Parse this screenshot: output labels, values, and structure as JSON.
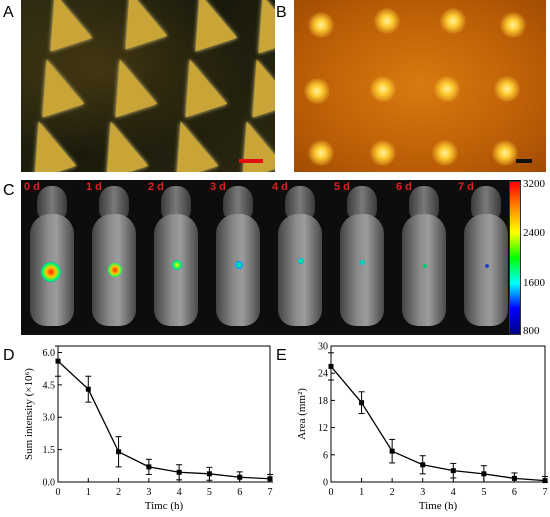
{
  "panels": {
    "a": "A",
    "b": "B",
    "c": "C",
    "d": "D",
    "e": "E"
  },
  "colorbar": {
    "ticks": [
      "3200",
      "2400",
      "1600",
      "800"
    ]
  },
  "days": [
    "0 d",
    "1 d",
    "2 d",
    "3 d",
    "4 d",
    "5 d",
    "6 d",
    "7 d"
  ],
  "chart_data": [
    {
      "type": "line",
      "panel": "D",
      "x": [
        0,
        1,
        2,
        3,
        4,
        5,
        6,
        7
      ],
      "values": [
        5.6,
        4.3,
        1.4,
        0.7,
        0.45,
        0.38,
        0.22,
        0.15
      ],
      "errors": [
        0.7,
        0.6,
        0.7,
        0.35,
        0.35,
        0.3,
        0.25,
        0.2
      ],
      "xlabel": "Timc (h)",
      "ylabel": "Sum intensity (×10⁶)",
      "xticks": [
        "0",
        "1",
        "2",
        "3",
        "4",
        "5",
        "6",
        "7"
      ],
      "yticks": [
        "0.0",
        "1.5",
        "3.0",
        "4.5",
        "6.0"
      ],
      "xlim": [
        0,
        7
      ],
      "ylim": [
        0,
        6.3
      ]
    },
    {
      "type": "line",
      "panel": "E",
      "x": [
        0,
        1,
        2,
        3,
        4,
        5,
        6,
        7
      ],
      "values": [
        25.5,
        17.5,
        6.8,
        3.8,
        2.5,
        1.8,
        0.8,
        0.3
      ],
      "errors": [
        3.0,
        2.4,
        2.6,
        2.0,
        1.6,
        1.8,
        1.2,
        0.9
      ],
      "xlabel": "Time (h)",
      "ylabel": "Area (mm²)",
      "xticks": [
        "0",
        "1",
        "2",
        "3",
        "4",
        "5",
        "6",
        "7"
      ],
      "yticks": [
        "0",
        "6",
        "12",
        "18",
        "24",
        "30"
      ],
      "xlim": [
        0,
        7
      ],
      "ylim": [
        0,
        30
      ]
    }
  ]
}
